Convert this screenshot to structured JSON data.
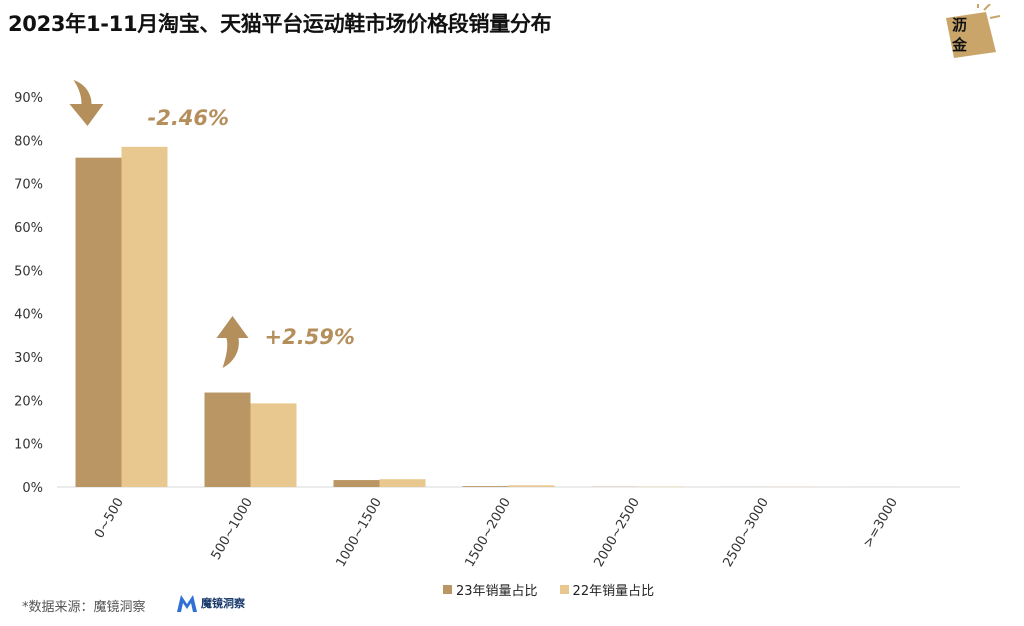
{
  "page": {
    "title": "2023年1-11月淘宝、天猫平台运动鞋市场价格段销量分布",
    "source": "*数据来源：魔镜洞察",
    "source_brand": "魔镜洞察",
    "logo_text": "沥金"
  },
  "colors": {
    "series_23": "#b99664",
    "series_22": "#e9c88f",
    "annotation": "#b48f5c",
    "axis": "#d9d9d9"
  },
  "chart_data": {
    "type": "bar",
    "title": "2023年1-11月淘宝、天猫平台运动鞋市场价格段销量分布",
    "categories": [
      "0~500",
      "500~1000",
      "1000~1500",
      "1500~2000",
      "2000~2500",
      "2500~3000",
      ">=3000"
    ],
    "series": [
      {
        "name": "23年销量占比",
        "values": [
          76.0,
          21.8,
          1.6,
          0.2,
          0.05,
          0.02,
          0.01
        ]
      },
      {
        "name": "22年销量占比",
        "values": [
          78.5,
          19.3,
          1.8,
          0.4,
          0.1,
          0.05,
          0.02
        ]
      }
    ],
    "yticks": [
      "0%",
      "10%",
      "20%",
      "30%",
      "40%",
      "50%",
      "60%",
      "70%",
      "80%",
      "90%"
    ],
    "ylim": [
      0,
      90
    ],
    "legend_position": "bottom",
    "grid": false,
    "annotations": [
      {
        "text": "-2.46%",
        "category": "0~500",
        "direction": "down"
      },
      {
        "text": "+2.59%",
        "category": "500~1000",
        "direction": "up"
      }
    ]
  }
}
